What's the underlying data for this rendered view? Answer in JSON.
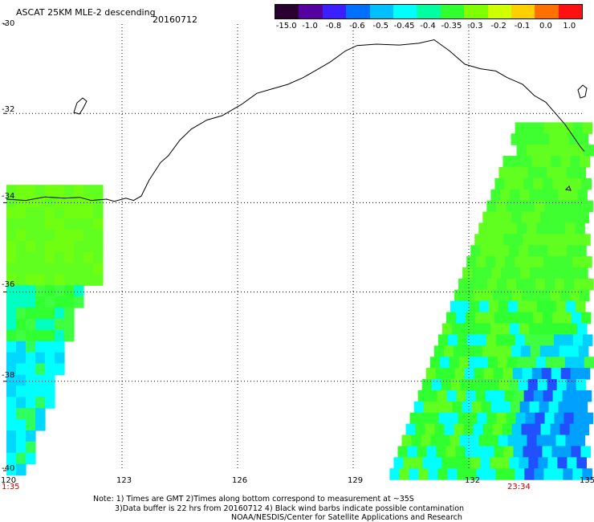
{
  "header": {
    "title": "ASCAT 25KM MLE-2 descending",
    "date": "20160712"
  },
  "colorbar": {
    "labels": [
      "-15.0",
      "-1.0",
      "-0.8",
      "-0.6",
      "-0.5",
      "-0.45",
      "-0.4",
      "-0.35",
      "-0.3",
      "-0.2",
      "-0.1",
      "0.0",
      "1.0"
    ],
    "colors": [
      "#2a0030",
      "#5500a0",
      "#3a20ff",
      "#0070ff",
      "#00c0ff",
      "#00ffff",
      "#00ffa0",
      "#30ff30",
      "#80ff00",
      "#d0ff00",
      "#ffd000",
      "#ff7000",
      "#ff1010"
    ]
  },
  "map": {
    "lon_min": 120,
    "lon_max": 135,
    "lat_min": -40,
    "lat_max": -30,
    "lon_ticks": [
      "120",
      "123",
      "126",
      "129",
      "132",
      "135"
    ],
    "lat_ticks": [
      "-30",
      "-32",
      "-34",
      "-36",
      "-38",
      "-40"
    ],
    "time_left": "1:35",
    "time_right": "23:34"
  },
  "notes": {
    "line1": "Note: 1) Times are GMT 2)Times along bottom correspond to measurement at ~35S",
    "line2": "3)Data buffer is 22 hrs from 20160712 4) Black wind barbs indicate possible contamination",
    "line3": "NOAA/NESDIS/Center for Satellite Applications and Research"
  }
}
